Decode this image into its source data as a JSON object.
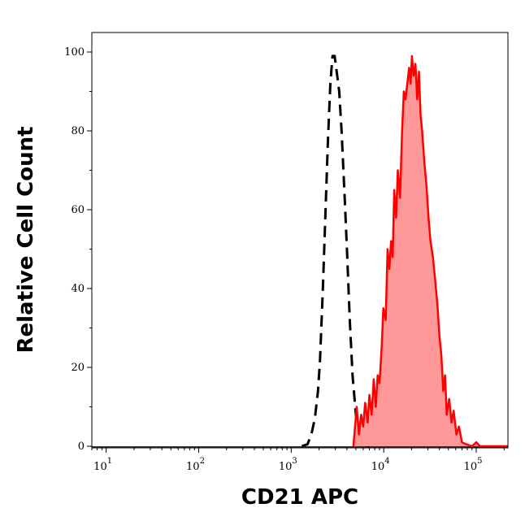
{
  "chart_data": {
    "type": "area",
    "xlabel": "CD21 APC",
    "ylabel": "Relative Cell Count",
    "x_scale": "log",
    "xlim": [
      7,
      220000
    ],
    "ylim": [
      0,
      105
    ],
    "grid": false,
    "y_ticks": [
      {
        "value": 0,
        "label": "0"
      },
      {
        "value": 20,
        "label": "20"
      },
      {
        "value": 40,
        "label": "40"
      },
      {
        "value": 60,
        "label": "60"
      },
      {
        "value": 80,
        "label": "80"
      },
      {
        "value": 100,
        "label": "100"
      }
    ],
    "x_ticks": [
      {
        "value": 10,
        "base": "10",
        "exp": "1"
      },
      {
        "value": 100,
        "base": "10",
        "exp": "2"
      },
      {
        "value": 1000,
        "base": "10",
        "exp": "3"
      },
      {
        "value": 10000,
        "base": "10",
        "exp": "4"
      },
      {
        "value": 100000,
        "base": "10",
        "exp": "5"
      }
    ],
    "series": [
      {
        "style": "dashed",
        "color": "#000000",
        "points": [
          [
            1300,
            0
          ],
          [
            1500,
            0.5
          ],
          [
            1650,
            3
          ],
          [
            1800,
            7
          ],
          [
            1950,
            14
          ],
          [
            2050,
            22
          ],
          [
            2200,
            40
          ],
          [
            2350,
            60
          ],
          [
            2500,
            78
          ],
          [
            2650,
            92
          ],
          [
            2800,
            99
          ],
          [
            2950,
            99
          ],
          [
            3100,
            95
          ],
          [
            3300,
            90
          ],
          [
            3500,
            80
          ],
          [
            3750,
            65
          ],
          [
            4000,
            50
          ],
          [
            4300,
            32
          ],
          [
            4600,
            18
          ],
          [
            5000,
            8
          ],
          [
            5400,
            3
          ],
          [
            6000,
            0.5
          ],
          [
            7000,
            0
          ]
        ]
      },
      {
        "style": "filled",
        "color": "#ff0000",
        "fill": "#ff9999",
        "points": [
          [
            4700,
            0
          ],
          [
            4900,
            5
          ],
          [
            5100,
            10
          ],
          [
            5400,
            3
          ],
          [
            5700,
            8
          ],
          [
            6000,
            5
          ],
          [
            6300,
            11
          ],
          [
            6700,
            6
          ],
          [
            7000,
            13
          ],
          [
            7400,
            8
          ],
          [
            7800,
            17
          ],
          [
            8200,
            10
          ],
          [
            8600,
            18
          ],
          [
            9000,
            16
          ],
          [
            9500,
            25
          ],
          [
            9900,
            35
          ],
          [
            10500,
            32
          ],
          [
            11000,
            50
          ],
          [
            11500,
            45
          ],
          [
            12000,
            52
          ],
          [
            12500,
            48
          ],
          [
            13000,
            65
          ],
          [
            13600,
            58
          ],
          [
            14200,
            70
          ],
          [
            15000,
            63
          ],
          [
            15800,
            80
          ],
          [
            16500,
            90
          ],
          [
            17200,
            88
          ],
          [
            18000,
            92
          ],
          [
            18800,
            96
          ],
          [
            19500,
            92
          ],
          [
            20200,
            99
          ],
          [
            21000,
            94
          ],
          [
            22000,
            97
          ],
          [
            23000,
            88
          ],
          [
            24000,
            95
          ],
          [
            25000,
            84
          ],
          [
            26000,
            80
          ],
          [
            27500,
            72
          ],
          [
            29000,
            66
          ],
          [
            30500,
            58
          ],
          [
            32000,
            52
          ],
          [
            34000,
            48
          ],
          [
            36000,
            42
          ],
          [
            38000,
            36
          ],
          [
            40000,
            28
          ],
          [
            42000,
            23
          ],
          [
            44000,
            14
          ],
          [
            46000,
            18
          ],
          [
            48000,
            8
          ],
          [
            51000,
            12
          ],
          [
            54000,
            6
          ],
          [
            57000,
            9
          ],
          [
            61000,
            3
          ],
          [
            65000,
            5
          ],
          [
            70000,
            1
          ],
          [
            78000,
            0.5
          ],
          [
            90000,
            0
          ],
          [
            100000,
            1
          ],
          [
            110000,
            0
          ],
          [
            220000,
            0
          ]
        ]
      }
    ]
  }
}
